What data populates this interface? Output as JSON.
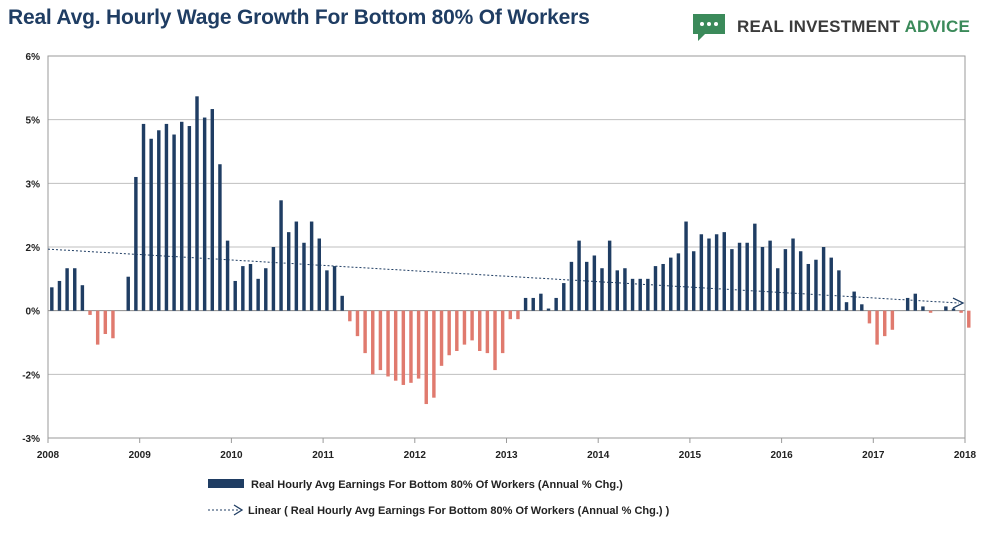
{
  "header": {
    "title": "Real Avg. Hourly Wage Growth For Bottom 80% Of Workers",
    "brand_main": "REAL INVESTMENT ",
    "brand_accent": "ADVICE",
    "brand_icon": "speech-bubble-icon"
  },
  "colors": {
    "positive": "#1f3d63",
    "negative": "#e07a6e",
    "trend": "#1f3d63",
    "grid": "#bfbfbf",
    "brand_green": "#3b8a5a"
  },
  "chart_data": {
    "type": "bar",
    "title": "Real Avg. Hourly Wage Growth For Bottom 80% Of Workers",
    "xlabel": "",
    "ylabel": "",
    "ylim": [
      -3,
      6
    ],
    "y_ticks": [
      {
        "value": 6,
        "label": "6%"
      },
      {
        "value": 4.5,
        "label": "5%"
      },
      {
        "value": 3,
        "label": "3%"
      },
      {
        "value": 1.5,
        "label": "2%"
      },
      {
        "value": 0,
        "label": "0%"
      },
      {
        "value": -1.5,
        "label": "-2%"
      },
      {
        "value": -3,
        "label": "-3%"
      }
    ],
    "x_range": [
      2008,
      2018
    ],
    "x_ticks": [
      "2008",
      "2009",
      "2010",
      "2011",
      "2012",
      "2013",
      "2014",
      "2015",
      "2016",
      "2017",
      "2018"
    ],
    "grid": true,
    "legend_position": "bottom",
    "series": [
      {
        "name": "Real Hourly Avg Earnings For Bottom 80% Of Workers (Annual % Chg.)",
        "start": 2008.0,
        "step": 0.08333,
        "values": [
          0.55,
          0.7,
          1.0,
          1.0,
          0.6,
          -0.1,
          -0.8,
          -0.55,
          -0.65,
          0.0,
          0.8,
          3.15,
          4.4,
          4.05,
          4.25,
          4.4,
          4.15,
          4.45,
          4.35,
          5.05,
          4.55,
          4.75,
          3.45,
          1.65,
          0.7,
          1.05,
          1.1,
          0.75,
          1.0,
          1.5,
          2.6,
          1.85,
          2.1,
          1.6,
          2.1,
          1.7,
          0.95,
          1.05,
          0.35,
          -0.25,
          -0.6,
          -1.0,
          -1.5,
          -1.4,
          -1.55,
          -1.65,
          -1.75,
          -1.7,
          -1.6,
          -2.2,
          -2.05,
          -1.3,
          -1.05,
          -0.95,
          -0.8,
          -0.7,
          -0.95,
          -1.0,
          -1.4,
          -1.0,
          -0.2,
          -0.2,
          0.3,
          0.3,
          0.4,
          0.05,
          0.3,
          0.65,
          1.15,
          1.65,
          1.15,
          1.3,
          1.0,
          1.65,
          0.95,
          1.0,
          0.75,
          0.75,
          0.75,
          1.05,
          1.1,
          1.25,
          1.35,
          2.1,
          1.4,
          1.8,
          1.7,
          1.8,
          1.85,
          1.45,
          1.6,
          1.6,
          2.05,
          1.5,
          1.65,
          1.0,
          1.45,
          1.7,
          1.4,
          1.1,
          1.2,
          1.5,
          1.25,
          0.95,
          0.2,
          0.45,
          0.15,
          -0.3,
          -0.8,
          -0.6,
          -0.45,
          0.0,
          0.3,
          0.4,
          0.1,
          -0.05,
          0.0,
          0.1,
          0.05,
          -0.05,
          -0.4
        ]
      },
      {
        "name": "Linear ( Real Hourly Avg Earnings For Bottom 80% Of Workers (Annual % Chg.) )",
        "type": "trendline",
        "x": [
          2008.0,
          2018.0
        ],
        "y": [
          1.45,
          0.18
        ]
      }
    ]
  }
}
